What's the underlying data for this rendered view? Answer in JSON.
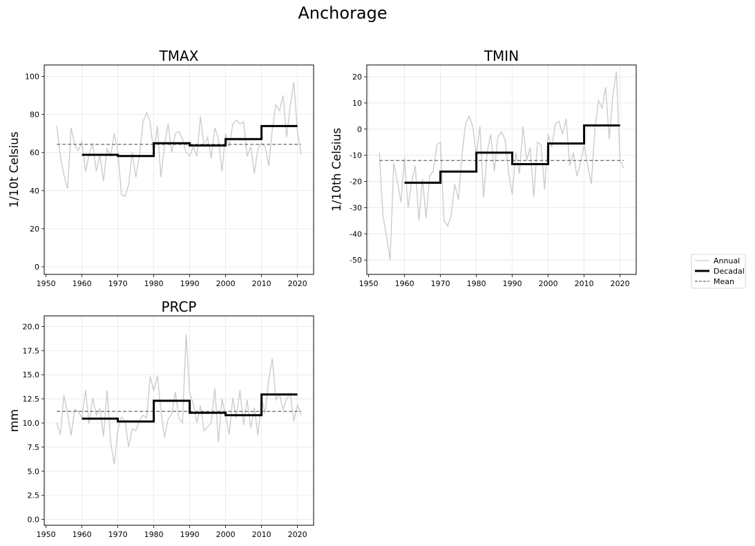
{
  "figure": {
    "title": "Anchorage"
  },
  "legend": {
    "placement": "right",
    "entries": [
      {
        "label": "Annual",
        "color": "#cccccc",
        "style": "solid"
      },
      {
        "label": "Decadal",
        "color": "#000000",
        "style": "thick"
      },
      {
        "label": "Mean",
        "color": "#666666",
        "style": "dashed"
      }
    ]
  },
  "chart_data": [
    {
      "type": "line",
      "title": "TMAX",
      "xlabel": "",
      "ylabel": "1/10t Celsius",
      "xlim": [
        1949.5,
        2024.5
      ],
      "ylim": [
        -4,
        106
      ],
      "xticks": [
        1950,
        1960,
        1970,
        1980,
        1990,
        2000,
        2010,
        2020
      ],
      "yticks": [
        0,
        20,
        40,
        60,
        80,
        100
      ],
      "grid": true,
      "annual": {
        "x": [
          1953,
          1954,
          1955,
          1956,
          1957,
          1958,
          1959,
          1960,
          1961,
          1962,
          1963,
          1964,
          1965,
          1966,
          1967,
          1968,
          1969,
          1970,
          1971,
          1972,
          1973,
          1974,
          1975,
          1976,
          1977,
          1978,
          1979,
          1980,
          1981,
          1982,
          1983,
          1984,
          1985,
          1986,
          1987,
          1988,
          1989,
          1990,
          1991,
          1992,
          1993,
          1994,
          1995,
          1996,
          1997,
          1998,
          1999,
          2000,
          2001,
          2002,
          2003,
          2004,
          2005,
          2006,
          2007,
          2008,
          2009,
          2010,
          2011,
          2012,
          2013,
          2014,
          2015,
          2016,
          2017,
          2018,
          2019,
          2020,
          2021
        ],
        "y": [
          74,
          58,
          48,
          41,
          73,
          64,
          61,
          66,
          50,
          59,
          65,
          50,
          59,
          45,
          62,
          58,
          70,
          61,
          38,
          37,
          43,
          60,
          47,
          58,
          76,
          81,
          76,
          59,
          74,
          47,
          64,
          75,
          60,
          70,
          71,
          67,
          60,
          58,
          63,
          58,
          79,
          63,
          68,
          57,
          73,
          67,
          50,
          70,
          63,
          75,
          77,
          75,
          76,
          58,
          63,
          49,
          62,
          65,
          63,
          53,
          72,
          85,
          82,
          90,
          68,
          85,
          97,
          71,
          59
        ]
      },
      "decadal": [
        {
          "x0": 1960,
          "x1": 1970,
          "value": 58.8
        },
        {
          "x0": 1970,
          "x1": 1980,
          "value": 58.2
        },
        {
          "x0": 1980,
          "x1": 1990,
          "value": 64.9
        },
        {
          "x0": 1990,
          "x1": 2000,
          "value": 63.7
        },
        {
          "x0": 2000,
          "x1": 2010,
          "value": 67.1
        },
        {
          "x0": 2010,
          "x1": 2020,
          "value": 73.9
        }
      ],
      "mean": {
        "x0": 1953,
        "x1": 2021,
        "value": 64.3
      }
    },
    {
      "type": "line",
      "title": "TMIN",
      "xlabel": "",
      "ylabel": "1/10th Celsius",
      "xlim": [
        1949.5,
        2024.5
      ],
      "ylim": [
        -55.5,
        24.5
      ],
      "xticks": [
        1950,
        1960,
        1970,
        1980,
        1990,
        2000,
        2010,
        2020
      ],
      "yticks": [
        -50,
        -40,
        -30,
        -20,
        -10,
        0,
        10,
        20
      ],
      "grid": true,
      "annual": {
        "x": [
          1953,
          1954,
          1955,
          1956,
          1957,
          1958,
          1959,
          1960,
          1961,
          1962,
          1963,
          1964,
          1965,
          1966,
          1967,
          1968,
          1969,
          1970,
          1971,
          1972,
          1973,
          1974,
          1975,
          1976,
          1977,
          1978,
          1979,
          1980,
          1981,
          1982,
          1983,
          1984,
          1985,
          1986,
          1987,
          1988,
          1989,
          1990,
          1991,
          1992,
          1993,
          1994,
          1995,
          1996,
          1997,
          1998,
          1999,
          2000,
          2001,
          2002,
          2003,
          2004,
          2005,
          2006,
          2007,
          2008,
          2009,
          2010,
          2011,
          2012,
          2013,
          2014,
          2015,
          2016,
          2017,
          2018,
          2019,
          2020,
          2021
        ],
        "y": [
          -9,
          -33,
          -41,
          -50,
          -13,
          -20,
          -28,
          -11,
          -30,
          -20,
          -14,
          -35,
          -19,
          -34,
          -18,
          -16,
          -6,
          -5,
          -35,
          -37,
          -33,
          -21,
          -27,
          -10,
          2,
          5,
          1,
          -10,
          1,
          -26,
          -9,
          -2,
          -16,
          -3,
          -1,
          -4,
          -17,
          -25,
          -9,
          -17,
          1,
          -12,
          -7,
          -26,
          -5,
          -6,
          -23,
          -2,
          -7,
          2,
          3,
          -2,
          4,
          -14,
          -9,
          -18,
          -13,
          -6,
          -14,
          -21,
          0,
          11,
          8,
          16,
          -4,
          13,
          22,
          -12,
          -15
        ]
      },
      "decadal": [
        {
          "x0": 1960,
          "x1": 1970,
          "value": -20.5
        },
        {
          "x0": 1970,
          "x1": 1980,
          "value": -16.2
        },
        {
          "x0": 1980,
          "x1": 1990,
          "value": -9.0
        },
        {
          "x0": 1990,
          "x1": 2000,
          "value": -13.4
        },
        {
          "x0": 2000,
          "x1": 2010,
          "value": -5.5
        },
        {
          "x0": 2010,
          "x1": 2020,
          "value": 1.4
        }
      ],
      "mean": {
        "x0": 1953,
        "x1": 2021,
        "value": -12.0
      }
    },
    {
      "type": "line",
      "title": "PRCP",
      "xlabel": "",
      "ylabel": "mm",
      "xlim": [
        1949.5,
        2024.5
      ],
      "ylim": [
        -0.6,
        21.1
      ],
      "xticks": [
        1950,
        1960,
        1970,
        1980,
        1990,
        2000,
        2010,
        2020
      ],
      "yticks": [
        0.0,
        2.5,
        5.0,
        7.5,
        10.0,
        12.5,
        15.0,
        17.5,
        20.0
      ],
      "grid": true,
      "annual": {
        "x": [
          1953,
          1954,
          1955,
          1956,
          1957,
          1958,
          1959,
          1960,
          1961,
          1962,
          1963,
          1964,
          1965,
          1966,
          1967,
          1968,
          1969,
          1970,
          1971,
          1972,
          1973,
          1974,
          1975,
          1976,
          1977,
          1978,
          1979,
          1980,
          1981,
          1982,
          1983,
          1984,
          1985,
          1986,
          1987,
          1988,
          1989,
          1990,
          1991,
          1992,
          1993,
          1994,
          1995,
          1996,
          1997,
          1998,
          1999,
          2000,
          2001,
          2002,
          2003,
          2004,
          2005,
          2006,
          2007,
          2008,
          2009,
          2010,
          2011,
          2012,
          2013,
          2014,
          2015,
          2016,
          2017,
          2018,
          2019,
          2020,
          2021
        ],
        "y": [
          10.0,
          8.8,
          12.9,
          11.0,
          8.7,
          11.4,
          11.2,
          10.5,
          13.4,
          9.9,
          12.6,
          10.8,
          11.5,
          8.6,
          13.4,
          8.0,
          5.7,
          9.3,
          10.6,
          10.2,
          7.5,
          9.4,
          9.2,
          10.2,
          10.8,
          10.5,
          14.8,
          13.3,
          14.9,
          11.3,
          8.5,
          10.4,
          10.9,
          13.2,
          10.5,
          10.0,
          19.2,
          13.1,
          12.0,
          10.0,
          11.8,
          9.2,
          9.6,
          10.0,
          13.6,
          8.0,
          12.5,
          10.8,
          8.8,
          12.6,
          10.5,
          13.4,
          9.8,
          12.4,
          9.5,
          11.6,
          8.7,
          12.6,
          11.0,
          14.5,
          16.7,
          12.4,
          13.0,
          11.4,
          12.5,
          13.1,
          10.2,
          11.9,
          10.8
        ]
      },
      "decadal": [
        {
          "x0": 1960,
          "x1": 1970,
          "value": 10.45
        },
        {
          "x0": 1970,
          "x1": 1980,
          "value": 10.15
        },
        {
          "x0": 1980,
          "x1": 1990,
          "value": 12.3
        },
        {
          "x0": 1990,
          "x1": 2000,
          "value": 11.05
        },
        {
          "x0": 2000,
          "x1": 2010,
          "value": 10.8
        },
        {
          "x0": 2010,
          "x1": 2020,
          "value": 12.95
        }
      ],
      "mean": {
        "x0": 1953,
        "x1": 2021,
        "value": 11.2
      }
    }
  ]
}
